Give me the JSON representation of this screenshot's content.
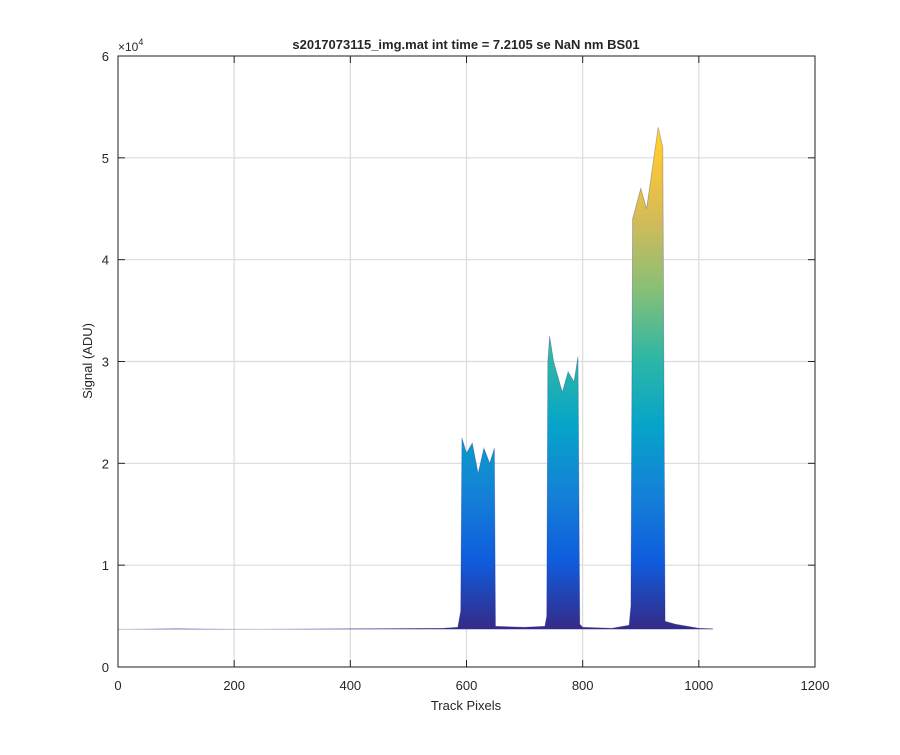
{
  "chart_data": {
    "type": "area",
    "title": "s2017073115_img.mat int time = 7.2105 se  NaN nm BS01",
    "xlabel": "Track Pixels",
    "ylabel": "Signal (ADU)",
    "y_multiplier_label": "×10",
    "y_multiplier_exponent": "4",
    "xlim": [
      0,
      1200
    ],
    "ylim": [
      0,
      60000
    ],
    "x_ticks": [
      0,
      200,
      400,
      600,
      800,
      1000,
      1200
    ],
    "x_tick_labels": [
      "0",
      "200",
      "400",
      "600",
      "800",
      "1000",
      "1200"
    ],
    "y_ticks": [
      0,
      10000,
      20000,
      30000,
      40000,
      50000,
      60000
    ],
    "y_tick_labels": [
      "0",
      "1",
      "2",
      "3",
      "4",
      "5",
      "6"
    ],
    "grid": true,
    "colormap": [
      "#352a87",
      "#0f5cdd",
      "#1481d6",
      "#06a4ca",
      "#2eb7a4",
      "#87bf77",
      "#d1bb59",
      "#fec832",
      "#f9fb0e"
    ],
    "baseline": 3700,
    "x_range": [
      0,
      1024
    ],
    "series": [
      {
        "values": [
          [
            0,
            3700
          ],
          [
            100,
            3750
          ],
          [
            200,
            3700
          ],
          [
            400,
            3750
          ],
          [
            560,
            3800
          ],
          [
            585,
            3900
          ],
          [
            590,
            5500
          ],
          [
            592,
            22500
          ],
          [
            600,
            21000
          ],
          [
            610,
            22000
          ],
          [
            620,
            19000
          ],
          [
            630,
            21500
          ],
          [
            640,
            20000
          ],
          [
            648,
            21500
          ],
          [
            650,
            4000
          ],
          [
            700,
            3900
          ],
          [
            735,
            4000
          ],
          [
            738,
            5000
          ],
          [
            740,
            30000
          ],
          [
            743,
            32500
          ],
          [
            750,
            30000
          ],
          [
            765,
            27000
          ],
          [
            775,
            29000
          ],
          [
            785,
            28000
          ],
          [
            792,
            30500
          ],
          [
            795,
            4200
          ],
          [
            800,
            3900
          ],
          [
            850,
            3800
          ],
          [
            880,
            4100
          ],
          [
            883,
            6000
          ],
          [
            886,
            44000
          ],
          [
            900,
            47000
          ],
          [
            910,
            45000
          ],
          [
            920,
            49000
          ],
          [
            930,
            53000
          ],
          [
            938,
            51000
          ],
          [
            942,
            4500
          ],
          [
            960,
            4200
          ],
          [
            1000,
            3800
          ],
          [
            1024,
            3750
          ]
        ]
      }
    ]
  }
}
